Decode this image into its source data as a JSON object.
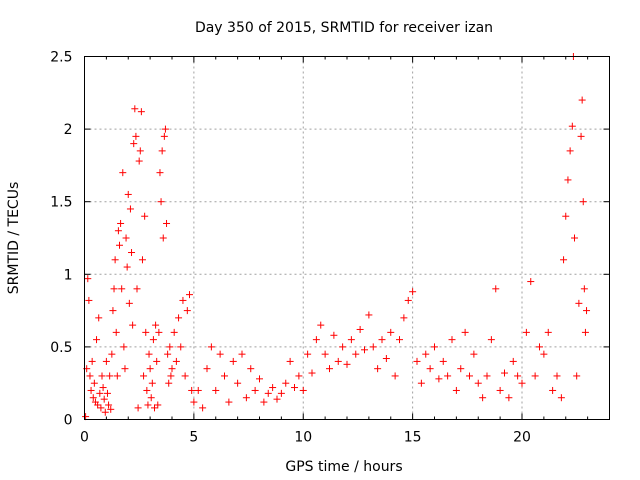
{
  "chart_data": {
    "type": "scatter",
    "title": "Day 350 of 2015, SRMTID for receiver izan",
    "xlabel": "GPS time / hours",
    "ylabel": "SRMTID / TECUs",
    "xlim": [
      0,
      24
    ],
    "ylim": [
      0,
      2.5
    ],
    "xticks": [
      0,
      5,
      10,
      15,
      20
    ],
    "xtick_labels": [
      "0",
      "5",
      "10",
      "15",
      "20"
    ],
    "yticks": [
      0,
      0.5,
      1,
      1.5,
      2,
      2.5
    ],
    "ytick_labels": [
      "0",
      "0.5",
      "1",
      "1.5",
      "2",
      "2.5"
    ],
    "grid": true,
    "marker": "plus",
    "color": "#ff0000",
    "series": [
      {
        "name": "SRMTID",
        "points": [
          [
            0.05,
            0.02
          ],
          [
            0.1,
            0.35
          ],
          [
            0.15,
            0.97
          ],
          [
            0.2,
            0.82
          ],
          [
            0.25,
            0.3
          ],
          [
            0.3,
            0.2
          ],
          [
            0.35,
            0.4
          ],
          [
            0.4,
            0.15
          ],
          [
            0.45,
            0.25
          ],
          [
            0.5,
            0.12
          ],
          [
            0.55,
            0.55
          ],
          [
            0.6,
            0.1
          ],
          [
            0.65,
            0.7
          ],
          [
            0.7,
            0.18
          ],
          [
            0.75,
            0.08
          ],
          [
            0.8,
            0.3
          ],
          [
            0.85,
            0.22
          ],
          [
            0.9,
            0.14
          ],
          [
            0.95,
            0.05
          ],
          [
            1.0,
            0.4
          ],
          [
            1.05,
            0.18
          ],
          [
            1.1,
            0.1
          ],
          [
            1.15,
            0.3
          ],
          [
            1.2,
            0.07
          ],
          [
            1.25,
            0.45
          ],
          [
            1.3,
            0.75
          ],
          [
            1.35,
            0.9
          ],
          [
            1.4,
            1.1
          ],
          [
            1.45,
            0.6
          ],
          [
            1.5,
            0.3
          ],
          [
            1.55,
            1.3
          ],
          [
            1.6,
            1.2
          ],
          [
            1.65,
            1.35
          ],
          [
            1.7,
            0.9
          ],
          [
            1.75,
            1.7
          ],
          [
            1.8,
            0.5
          ],
          [
            1.85,
            0.35
          ],
          [
            1.9,
            1.25
          ],
          [
            1.95,
            1.05
          ],
          [
            2.0,
            1.55
          ],
          [
            2.05,
            0.8
          ],
          [
            2.1,
            1.45
          ],
          [
            2.15,
            1.15
          ],
          [
            2.2,
            0.65
          ],
          [
            2.25,
            1.9
          ],
          [
            2.3,
            2.14
          ],
          [
            2.35,
            1.95
          ],
          [
            2.4,
            0.9
          ],
          [
            2.45,
            0.08
          ],
          [
            2.5,
            1.78
          ],
          [
            2.55,
            1.85
          ],
          [
            2.6,
            2.12
          ],
          [
            2.65,
            1.1
          ],
          [
            2.7,
            0.3
          ],
          [
            2.75,
            1.4
          ],
          [
            2.8,
            0.6
          ],
          [
            2.85,
            0.2
          ],
          [
            2.9,
            0.1
          ],
          [
            2.95,
            0.45
          ],
          [
            3.0,
            0.35
          ],
          [
            3.05,
            0.15
          ],
          [
            3.1,
            0.25
          ],
          [
            3.15,
            0.55
          ],
          [
            3.2,
            0.08
          ],
          [
            3.25,
            0.65
          ],
          [
            3.3,
            0.4
          ],
          [
            3.35,
            0.1
          ],
          [
            3.4,
            0.6
          ],
          [
            3.45,
            1.7
          ],
          [
            3.5,
            1.5
          ],
          [
            3.55,
            1.85
          ],
          [
            3.6,
            1.25
          ],
          [
            3.65,
            1.95
          ],
          [
            3.7,
            2.0
          ],
          [
            3.75,
            1.35
          ],
          [
            3.8,
            0.45
          ],
          [
            3.85,
            0.25
          ],
          [
            3.9,
            0.5
          ],
          [
            3.95,
            0.3
          ],
          [
            4.0,
            0.35
          ],
          [
            4.1,
            0.6
          ],
          [
            4.2,
            0.4
          ],
          [
            4.3,
            0.7
          ],
          [
            4.4,
            0.5
          ],
          [
            4.5,
            0.82
          ],
          [
            4.6,
            0.3
          ],
          [
            4.7,
            0.75
          ],
          [
            4.8,
            0.86
          ],
          [
            4.9,
            0.2
          ],
          [
            5.0,
            0.12
          ],
          [
            5.2,
            0.2
          ],
          [
            5.4,
            0.08
          ],
          [
            5.6,
            0.35
          ],
          [
            5.8,
            0.5
          ],
          [
            6.0,
            0.2
          ],
          [
            6.2,
            0.45
          ],
          [
            6.4,
            0.3
          ],
          [
            6.6,
            0.12
          ],
          [
            6.8,
            0.4
          ],
          [
            7.0,
            0.25
          ],
          [
            7.2,
            0.45
          ],
          [
            7.4,
            0.15
          ],
          [
            7.6,
            0.35
          ],
          [
            7.8,
            0.2
          ],
          [
            8.0,
            0.28
          ],
          [
            8.2,
            0.12
          ],
          [
            8.4,
            0.18
          ],
          [
            8.6,
            0.22
          ],
          [
            8.8,
            0.14
          ],
          [
            9.0,
            0.18
          ],
          [
            9.2,
            0.25
          ],
          [
            9.4,
            0.4
          ],
          [
            9.6,
            0.22
          ],
          [
            9.8,
            0.3
          ],
          [
            10.0,
            0.2
          ],
          [
            10.2,
            0.45
          ],
          [
            10.4,
            0.32
          ],
          [
            10.6,
            0.55
          ],
          [
            10.8,
            0.65
          ],
          [
            11.0,
            0.45
          ],
          [
            11.2,
            0.35
          ],
          [
            11.4,
            0.58
          ],
          [
            11.6,
            0.4
          ],
          [
            11.8,
            0.5
          ],
          [
            12.0,
            0.38
          ],
          [
            12.2,
            0.55
          ],
          [
            12.4,
            0.45
          ],
          [
            12.6,
            0.62
          ],
          [
            12.8,
            0.48
          ],
          [
            13.0,
            0.72
          ],
          [
            13.2,
            0.5
          ],
          [
            13.4,
            0.35
          ],
          [
            13.6,
            0.55
          ],
          [
            13.8,
            0.42
          ],
          [
            14.0,
            0.6
          ],
          [
            14.2,
            0.3
          ],
          [
            14.4,
            0.55
          ],
          [
            14.6,
            0.7
          ],
          [
            14.8,
            0.82
          ],
          [
            15.0,
            0.88
          ],
          [
            15.2,
            0.4
          ],
          [
            15.4,
            0.25
          ],
          [
            15.6,
            0.45
          ],
          [
            15.8,
            0.35
          ],
          [
            16.0,
            0.5
          ],
          [
            16.2,
            0.28
          ],
          [
            16.4,
            0.4
          ],
          [
            16.6,
            0.3
          ],
          [
            16.8,
            0.55
          ],
          [
            17.0,
            0.2
          ],
          [
            17.2,
            0.35
          ],
          [
            17.4,
            0.6
          ],
          [
            17.6,
            0.3
          ],
          [
            17.8,
            0.45
          ],
          [
            18.0,
            0.25
          ],
          [
            18.2,
            0.15
          ],
          [
            18.4,
            0.3
          ],
          [
            18.6,
            0.55
          ],
          [
            18.8,
            0.9
          ],
          [
            19.0,
            0.2
          ],
          [
            19.2,
            0.32
          ],
          [
            19.4,
            0.15
          ],
          [
            19.6,
            0.4
          ],
          [
            19.8,
            0.3
          ],
          [
            20.0,
            0.25
          ],
          [
            20.2,
            0.6
          ],
          [
            20.4,
            0.95
          ],
          [
            20.6,
            0.3
          ],
          [
            20.8,
            0.5
          ],
          [
            21.0,
            0.45
          ],
          [
            21.2,
            0.6
          ],
          [
            21.4,
            0.2
          ],
          [
            21.6,
            0.3
          ],
          [
            21.8,
            0.15
          ],
          [
            21.9,
            1.1
          ],
          [
            22.0,
            1.4
          ],
          [
            22.1,
            1.65
          ],
          [
            22.2,
            1.85
          ],
          [
            22.3,
            2.02
          ],
          [
            22.35,
            2.5
          ],
          [
            22.4,
            1.25
          ],
          [
            22.5,
            0.3
          ],
          [
            22.6,
            0.8
          ],
          [
            22.7,
            1.95
          ],
          [
            22.75,
            2.2
          ],
          [
            22.8,
            1.5
          ],
          [
            22.85,
            0.9
          ],
          [
            22.9,
            0.6
          ],
          [
            22.95,
            0.75
          ]
        ]
      }
    ]
  }
}
